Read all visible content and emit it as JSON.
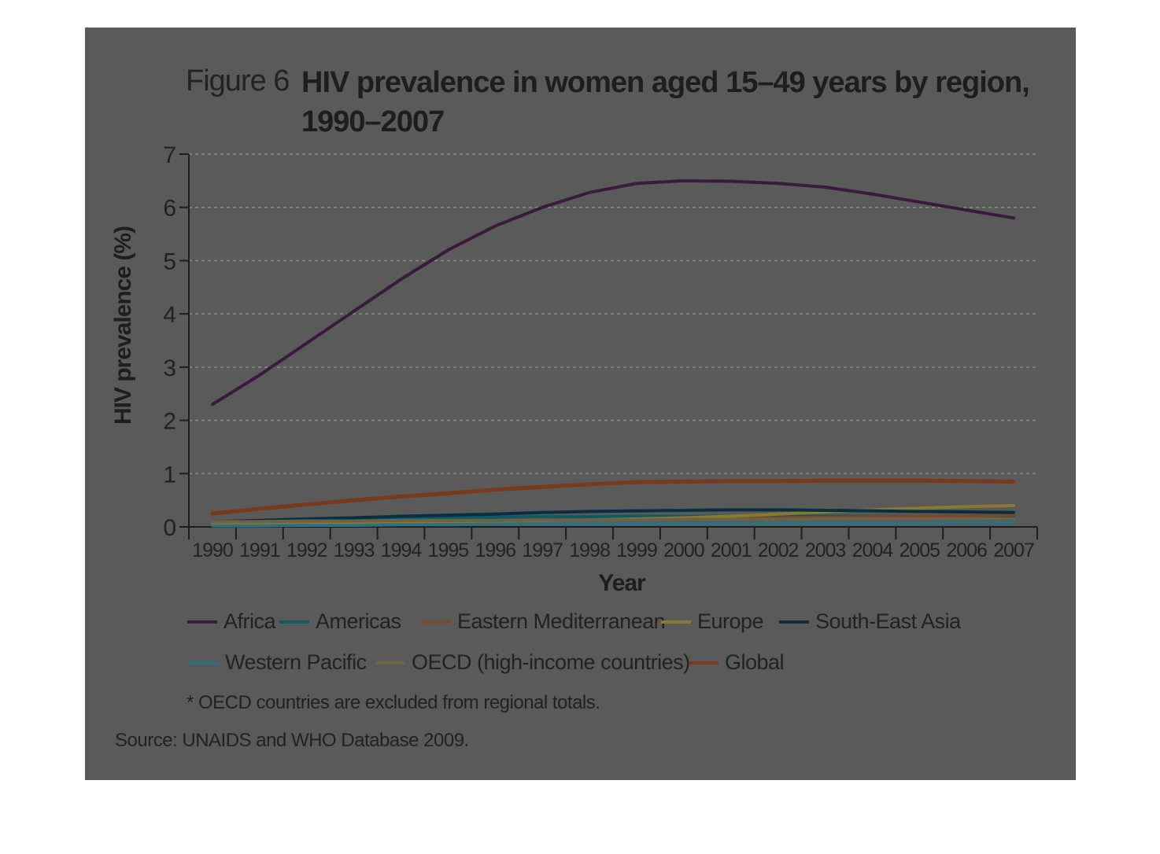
{
  "title": {
    "prefix": "Figure 6",
    "main": "HIV prevalence in women aged 15–49 years by region, 1990–2007"
  },
  "note": "* OECD countries are excluded from regional totals.",
  "source": "Source: UNAIDS and WHO Database 2009.",
  "chart_data": {
    "type": "line",
    "xlabel": "Year",
    "ylabel": "HIV prevalence (%)",
    "ylim": [
      0,
      7
    ],
    "yticks": [
      0,
      1,
      2,
      3,
      4,
      5,
      6,
      7
    ],
    "grid": "horizontal dashed",
    "legend_position": "bottom",
    "x": [
      1990,
      1991,
      1992,
      1993,
      1994,
      1995,
      1996,
      1997,
      1998,
      1999,
      2000,
      2001,
      2002,
      2003,
      2004,
      2005,
      2006,
      2007
    ],
    "series": [
      {
        "name": "Africa",
        "color": "#3a1a3d",
        "values": [
          2.3,
          2.85,
          3.45,
          4.05,
          4.65,
          5.2,
          5.65,
          6.0,
          6.28,
          6.45,
          6.5,
          6.49,
          6.45,
          6.38,
          6.25,
          6.1,
          5.95,
          5.8
        ]
      },
      {
        "name": "Americas",
        "color": "#0e5a63",
        "values": [
          0.1,
          0.12,
          0.14,
          0.15,
          0.16,
          0.17,
          0.18,
          0.19,
          0.19,
          0.2,
          0.2,
          0.2,
          0.2,
          0.2,
          0.2,
          0.2,
          0.2,
          0.2
        ]
      },
      {
        "name": "Eastern Mediterranean",
        "color": "#7a4a2a",
        "values": [
          0.05,
          0.06,
          0.07,
          0.08,
          0.09,
          0.1,
          0.11,
          0.12,
          0.13,
          0.14,
          0.15,
          0.16,
          0.17,
          0.18,
          0.19,
          0.2,
          0.21,
          0.22
        ]
      },
      {
        "name": "Europe",
        "color": "#8a7a30",
        "values": [
          0.05,
          0.06,
          0.07,
          0.08,
          0.09,
          0.1,
          0.11,
          0.12,
          0.13,
          0.15,
          0.17,
          0.2,
          0.24,
          0.28,
          0.32,
          0.35,
          0.38,
          0.4
        ]
      },
      {
        "name": "South-East Asia",
        "color": "#0b2e40",
        "values": [
          0.1,
          0.12,
          0.15,
          0.17,
          0.2,
          0.22,
          0.24,
          0.27,
          0.29,
          0.3,
          0.31,
          0.32,
          0.32,
          0.31,
          0.3,
          0.29,
          0.28,
          0.27
        ]
      },
      {
        "name": "Western Pacific",
        "color": "#2f6f82",
        "values": [
          0.02,
          0.02,
          0.03,
          0.03,
          0.04,
          0.04,
          0.05,
          0.05,
          0.05,
          0.06,
          0.06,
          0.06,
          0.07,
          0.07,
          0.07,
          0.07,
          0.08,
          0.08
        ]
      },
      {
        "name": "OECD (high-income countries)",
        "color": "#6b6248",
        "values": [
          0.1,
          0.1,
          0.11,
          0.11,
          0.12,
          0.12,
          0.12,
          0.13,
          0.13,
          0.13,
          0.14,
          0.14,
          0.14,
          0.15,
          0.15,
          0.15,
          0.15,
          0.15
        ]
      },
      {
        "name": "Global",
        "color": "#7a3a1e",
        "values": [
          0.25,
          0.34,
          0.42,
          0.5,
          0.57,
          0.63,
          0.7,
          0.75,
          0.8,
          0.84,
          0.85,
          0.86,
          0.86,
          0.87,
          0.87,
          0.87,
          0.86,
          0.85
        ]
      }
    ]
  },
  "colors": {
    "panel": "#5a5a5a",
    "axis": "#1e1e1e",
    "grid": "#8a8a8a"
  }
}
